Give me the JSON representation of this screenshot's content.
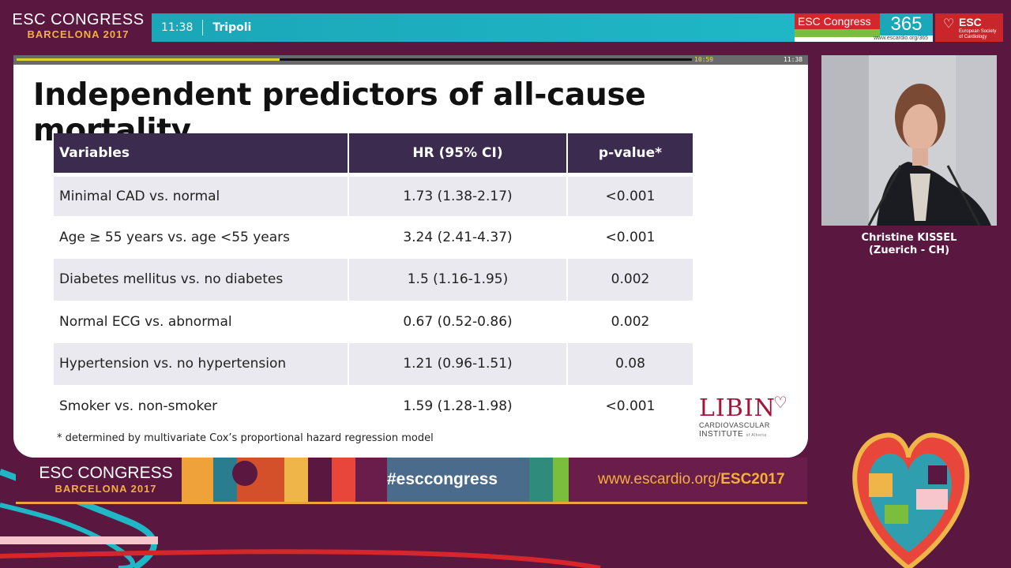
{
  "header": {
    "congress_line1": "ESC CONGRESS",
    "congress_line2": "BARCELONA 2017",
    "time": "11:38",
    "room": "Tripoli",
    "esc365_label": "ESC Congress",
    "esc365_number": "365",
    "esc365_url": "www.escardio.org/365",
    "society_name": "ESC",
    "society_sub": "European Society of Cardiology"
  },
  "slide": {
    "progress": {
      "elapsed": "10:59",
      "total": "11:38",
      "fraction": 0.39
    },
    "title": "Independent predictors of all-cause mortality",
    "table": {
      "headers": [
        "Variables",
        "HR (95% CI)",
        "p-value*"
      ],
      "rows": [
        {
          "variable": "Minimal CAD vs. normal",
          "hr": "1.73 (1.38-2.17)",
          "p": "<0.001"
        },
        {
          "variable": "Age ≥ 55 years vs. age <55 years",
          "hr": "3.24 (2.41-4.37)",
          "p": "<0.001"
        },
        {
          "variable": "Diabetes mellitus vs. no diabetes",
          "hr": "1.5 (1.16-1.95)",
          "p": "0.002"
        },
        {
          "variable": "Normal ECG vs. abnormal",
          "hr": "0.67 (0.52-0.86)",
          "p": "0.002"
        },
        {
          "variable": "Hypertension vs. no hypertension",
          "hr": "1.21 (0.96-1.51)",
          "p": "0.08"
        },
        {
          "variable": "Smoker vs. non-smoker",
          "hr": "1.59 (1.28-1.98)",
          "p": "<0.001"
        }
      ]
    },
    "footnote": "* determined by multivariate Cox’s proportional hazard regression model",
    "logo": {
      "name": "LIBIN",
      "line1": "CARDIOVASCULAR",
      "line2": "INSTITUTE",
      "line2_suffix": "of Alberta"
    }
  },
  "banner": {
    "line1": "ESC CONGRESS",
    "line2": "BARCELONA 2017",
    "hashtag": "#esccongress",
    "url_prefix": "www.escardio.org/",
    "url_suffix": "ESC2017"
  },
  "speaker": {
    "name": "Christine KISSEL",
    "affiliation": "(Zuerich - CH)"
  },
  "colors": {
    "background": "#5a1740",
    "table_header": "#3a2b4f",
    "row_shade": "#ebe9f0",
    "accent_teal": "#1aa7b8",
    "accent_orange": "#f4b03a",
    "esc_red": "#c9262c"
  }
}
